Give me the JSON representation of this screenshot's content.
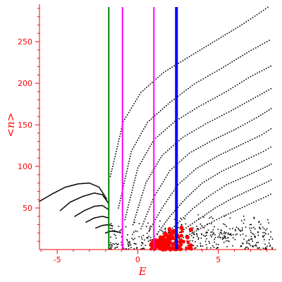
{
  "chart_data": {
    "type": "scatter",
    "xlabel": "E",
    "ylabel": "<n>",
    "xlim": [
      -6.1,
      8.6
    ],
    "ylim": [
      0,
      295
    ],
    "xticks": [
      -5,
      0,
      5
    ],
    "yticks": [
      50,
      100,
      150,
      200,
      250
    ],
    "colors": {
      "axis": "#ff0000",
      "points": "#000000",
      "highlight_points": "#ff0000",
      "green_line": "#008000",
      "magenta_line": "#ff00ff",
      "blue_line": "#0000ff"
    },
    "vertical_lines": [
      {
        "x": -1.8,
        "color": "#008000"
      },
      {
        "x": -0.95,
        "color": "#ff00ff"
      },
      {
        "x": 1.0,
        "color": "#ff00ff"
      },
      {
        "x": 2.4,
        "color": "#0000ff"
      }
    ],
    "series": [
      {
        "x": [
          -1.7,
          -0.9,
          0.2,
          1.6,
          3.2,
          4.9,
          6.6,
          8.2
        ],
        "y": [
          88,
          154,
          189,
          213,
          232,
          252,
          272,
          293
        ]
      },
      {
        "x": [
          -1.2,
          -0.4,
          0.6,
          2.0,
          3.5,
          5.2,
          6.9,
          8.3
        ],
        "y": [
          50,
          118,
          153,
          177,
          199,
          218,
          238,
          253
        ]
      },
      {
        "x": [
          -0.8,
          0.0,
          1.0,
          2.3,
          3.8,
          5.5,
          7.0,
          8.4
        ],
        "y": [
          36,
          98,
          132,
          154,
          172,
          190,
          208,
          222
        ]
      },
      {
        "x": [
          -0.3,
          0.5,
          1.5,
          2.8,
          4.2,
          5.8,
          7.3,
          8.4
        ],
        "y": [
          30,
          80,
          113,
          135,
          151,
          167,
          183,
          195
        ]
      },
      {
        "x": [
          0.2,
          1.0,
          2.0,
          3.2,
          4.6,
          6.1,
          7.5,
          8.4
        ],
        "y": [
          25,
          63,
          95,
          116,
          131,
          145,
          160,
          171
        ]
      },
      {
        "x": [
          0.7,
          1.5,
          2.5,
          3.6,
          4.9,
          6.4,
          7.7,
          8.4
        ],
        "y": [
          22,
          50,
          78,
          97,
          112,
          126,
          138,
          147
        ]
      },
      {
        "x": [
          1.2,
          2.0,
          3.0,
          4.0,
          5.2,
          6.6,
          7.8,
          8.4
        ],
        "y": [
          19,
          40,
          62,
          80,
          94,
          107,
          118,
          125
        ]
      },
      {
        "x": [
          1.7,
          2.5,
          3.4,
          4.4,
          5.5,
          6.8,
          7.9,
          8.4
        ],
        "y": [
          17,
          32,
          49,
          64,
          78,
          89,
          99,
          104
        ]
      },
      {
        "x": [
          2.2,
          3.0,
          3.9,
          4.8,
          5.9,
          7.0,
          8.0,
          8.4
        ],
        "y": [
          15,
          26,
          38,
          50,
          62,
          72,
          81,
          85
        ]
      },
      {
        "x": [
          2.7,
          3.5,
          4.3,
          5.2,
          6.2,
          7.2,
          8.1,
          8.4
        ],
        "y": [
          13,
          21,
          30,
          39,
          48,
          57,
          65,
          68
        ]
      },
      {
        "x": [
          -6.1,
          -5.3,
          -4.5,
          -3.7,
          -3.0,
          -2.4,
          -1.9
        ],
        "y": [
          58,
          67,
          75,
          79,
          80,
          75,
          60
        ]
      },
      {
        "x": [
          -4.8,
          -4.2,
          -3.4,
          -2.7,
          -2.2,
          -1.8
        ],
        "y": [
          47,
          57,
          64,
          68,
          66,
          55
        ]
      },
      {
        "x": [
          -3.9,
          -3.3,
          -2.7,
          -2.2,
          -1.8
        ],
        "y": [
          40,
          47,
          52,
          53,
          48
        ]
      },
      {
        "x": [
          -3.2,
          -2.7,
          -2.2,
          -1.8
        ],
        "y": [
          33,
          38,
          40,
          38
        ]
      },
      {
        "x": [
          -2.6,
          -2.2,
          -1.8,
          -1.5
        ],
        "y": [
          26,
          29,
          30,
          28
        ]
      },
      {
        "x": [
          -2.0,
          -1.7,
          -1.4,
          -1.0
        ],
        "y": [
          20,
          22,
          22,
          20
        ]
      }
    ],
    "highlight_series": [
      {
        "x": [
          0.8,
          3.6
        ],
        "y": [
          0,
          28
        ]
      }
    ]
  }
}
